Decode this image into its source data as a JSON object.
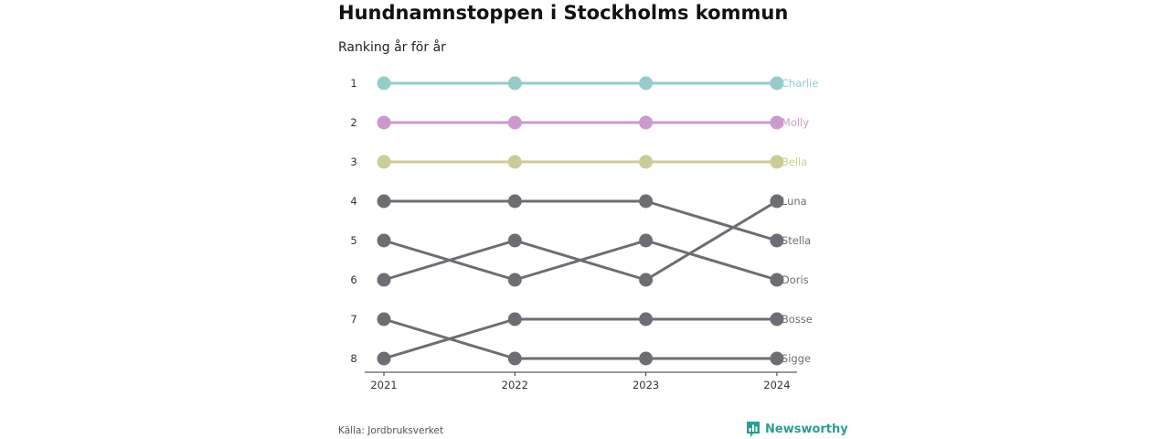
{
  "header": {
    "title": "Hundnamnstoppen i Stockholms kommun",
    "subtitle": "Ranking år för år"
  },
  "footer": {
    "source": "Källa: Jordbruksverket",
    "brand": "Newsworthy",
    "brand_color": "#2a9d8f"
  },
  "chart_data": {
    "type": "line",
    "x": [
      "2021",
      "2022",
      "2023",
      "2024"
    ],
    "y_ticks": [
      1,
      2,
      3,
      4,
      5,
      6,
      7,
      8
    ],
    "ylim": [
      1,
      8
    ],
    "y_inverted": true,
    "grid": false,
    "series": [
      {
        "name": "Charlie",
        "values": [
          1,
          1,
          1,
          1
        ],
        "color": "#96cbcb"
      },
      {
        "name": "Molly",
        "values": [
          2,
          2,
          2,
          2
        ],
        "color": "#cc99cc"
      },
      {
        "name": "Bella",
        "values": [
          3,
          3,
          3,
          3
        ],
        "color": "#cccc99"
      },
      {
        "name": "Luna",
        "values": [
          6,
          5,
          6,
          4
        ],
        "color": "#6e6d73"
      },
      {
        "name": "Stella",
        "values": [
          4,
          4,
          4,
          5
        ],
        "color": "#6e6d73"
      },
      {
        "name": "Doris",
        "values": [
          5,
          6,
          5,
          6
        ],
        "color": "#6e6d73"
      },
      {
        "name": "Bosse",
        "values": [
          8,
          7,
          7,
          7
        ],
        "color": "#6e6d73"
      },
      {
        "name": "Sigge",
        "values": [
          7,
          8,
          8,
          8
        ],
        "color": "#6e6d73"
      }
    ]
  }
}
